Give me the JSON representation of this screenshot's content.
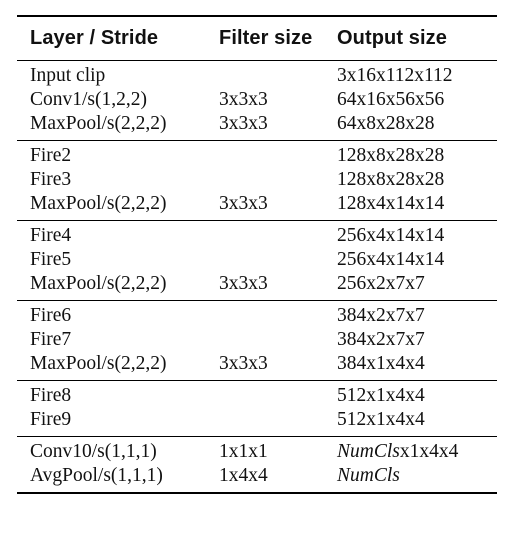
{
  "table": {
    "headers": [
      "Layer / Stride",
      "Filter size",
      "Output size"
    ],
    "groups": [
      [
        {
          "layer": "Input clip",
          "filter": "",
          "output": "3x16x112x112"
        },
        {
          "layer": "Conv1/s(1,2,2)",
          "filter": "3x3x3",
          "output": "64x16x56x56"
        },
        {
          "layer": "MaxPool/s(2,2,2)",
          "filter": "3x3x3",
          "output": "64x8x28x28"
        }
      ],
      [
        {
          "layer": "Fire2",
          "filter": "",
          "output": "128x8x28x28"
        },
        {
          "layer": "Fire3",
          "filter": "",
          "output": "128x8x28x28"
        },
        {
          "layer": "MaxPool/s(2,2,2)",
          "filter": "3x3x3",
          "output": "128x4x14x14"
        }
      ],
      [
        {
          "layer": "Fire4",
          "filter": "",
          "output": "256x4x14x14"
        },
        {
          "layer": "Fire5",
          "filter": "",
          "output": "256x4x14x14"
        },
        {
          "layer": "MaxPool/s(2,2,2)",
          "filter": "3x3x3",
          "output": "256x2x7x7"
        }
      ],
      [
        {
          "layer": "Fire6",
          "filter": "",
          "output": "384x2x7x7"
        },
        {
          "layer": "Fire7",
          "filter": "",
          "output": "384x2x7x7"
        },
        {
          "layer": "MaxPool/s(2,2,2)",
          "filter": "3x3x3",
          "output": "384x1x4x4"
        }
      ],
      [
        {
          "layer": "Fire8",
          "filter": "",
          "output": "512x1x4x4"
        },
        {
          "layer": "Fire9",
          "filter": "",
          "output": "512x1x4x4"
        }
      ],
      [
        {
          "layer": "Conv10/s(1,1,1)",
          "filter": "1x1x1",
          "output_italic": "NumCls",
          "output_rest": "x1x4x4"
        },
        {
          "layer": "AvgPool/s(1,1,1)",
          "filter": "1x4x4",
          "output_italic": "NumCls",
          "output_rest": ""
        }
      ]
    ]
  }
}
